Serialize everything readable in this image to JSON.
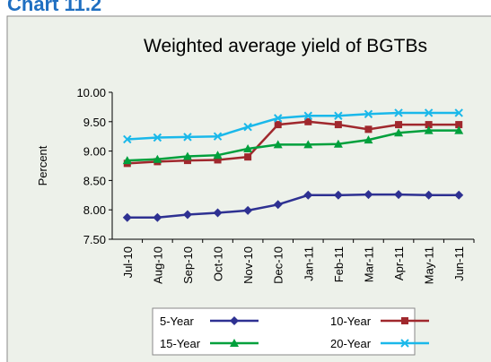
{
  "header": {
    "title": "Chart 11.2"
  },
  "chart_data": {
    "type": "line",
    "title": "Weighted average yield of BGTBs",
    "y_label": "Percent",
    "categories": [
      "Jul-10",
      "Aug-10",
      "Sep-10",
      "Oct-10",
      "Nov-10",
      "Dec-10",
      "Jan-11",
      "Feb-11",
      "Mar-11",
      "Apr-11",
      "May-11",
      "Jun-11"
    ],
    "series": [
      {
        "name": "5-Year",
        "color": "#2e3192",
        "marker": "diamond",
        "values": [
          7.87,
          7.87,
          7.92,
          7.95,
          7.99,
          8.09,
          8.25,
          8.25,
          8.26,
          8.26,
          8.25,
          8.25
        ]
      },
      {
        "name": "10-Year",
        "color": "#a0282d",
        "marker": "square",
        "values": [
          8.79,
          8.82,
          8.84,
          8.85,
          8.9,
          9.45,
          9.5,
          9.45,
          9.37,
          9.45,
          9.45,
          9.45
        ]
      },
      {
        "name": "15-Year",
        "color": "#00a03c",
        "marker": "triangle",
        "values": [
          8.84,
          8.86,
          8.91,
          8.93,
          9.04,
          9.11,
          9.11,
          9.12,
          9.19,
          9.31,
          9.35,
          9.35
        ]
      },
      {
        "name": "20-Year",
        "color": "#1ab8ea",
        "marker": "x",
        "values": [
          9.2,
          9.23,
          9.24,
          9.25,
          9.41,
          9.56,
          9.6,
          9.6,
          9.63,
          9.65,
          9.65,
          9.65
        ]
      }
    ],
    "ylim": [
      7.5,
      10.0
    ],
    "yticks": [
      {
        "value": 7.5,
        "label": "7.50"
      },
      {
        "value": 8.0,
        "label": "8.00"
      },
      {
        "value": 8.5,
        "label": "8.50"
      },
      {
        "value": 9.0,
        "label": "9.00"
      },
      {
        "value": 9.5,
        "label": "9.50"
      },
      {
        "value": 10.0,
        "label": "10.00"
      }
    ],
    "grid": false,
    "legend": "bottom"
  }
}
